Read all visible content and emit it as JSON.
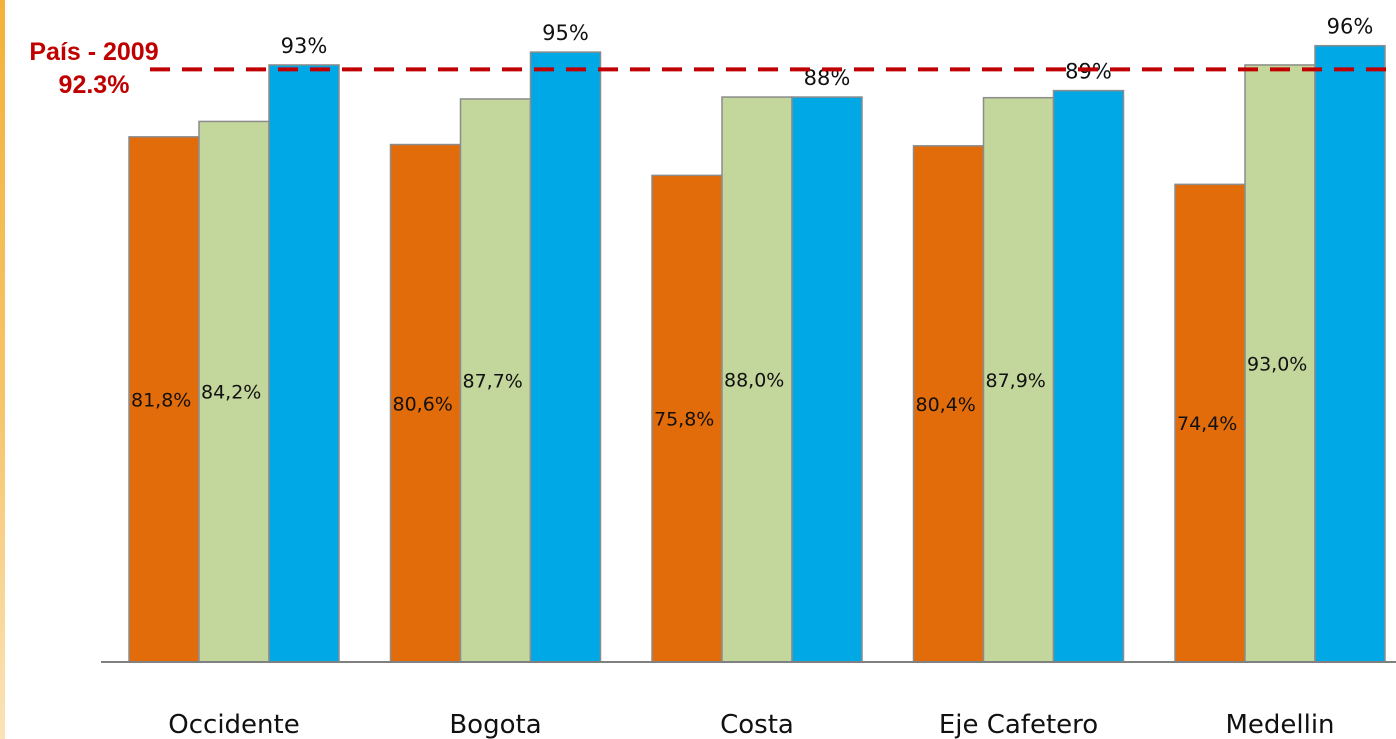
{
  "chart_data": {
    "type": "bar",
    "categories": [
      "Occidente",
      "Bogota",
      "Costa",
      "Eje Cafetero",
      "Medellin"
    ],
    "series": [
      {
        "values": [
          81.8,
          80.6,
          75.8,
          80.4,
          74.4
        ],
        "labels": [
          "81,8%",
          "80,6%",
          "75,8%",
          "80,4%",
          "74,4%"
        ],
        "color": "#e36c0a"
      },
      {
        "values": [
          84.2,
          87.7,
          88.0,
          87.9,
          93.0
        ],
        "labels": [
          "84,2%",
          "87,7%",
          "88,0%",
          "87,9%",
          "93,0%"
        ],
        "color": "#c3d69b"
      },
      {
        "values": [
          93,
          95,
          88,
          89,
          96
        ],
        "labels": [
          "93%",
          "95%",
          "88%",
          "89%",
          "96%"
        ],
        "color": "#00a8e6"
      }
    ],
    "ylim": [
      0,
      100
    ],
    "grid": false,
    "reference_line": {
      "value": 92.3,
      "label_line1": "País - 2009",
      "label_line2": "92.3%",
      "color": "#c00000",
      "style": "dashed"
    }
  }
}
